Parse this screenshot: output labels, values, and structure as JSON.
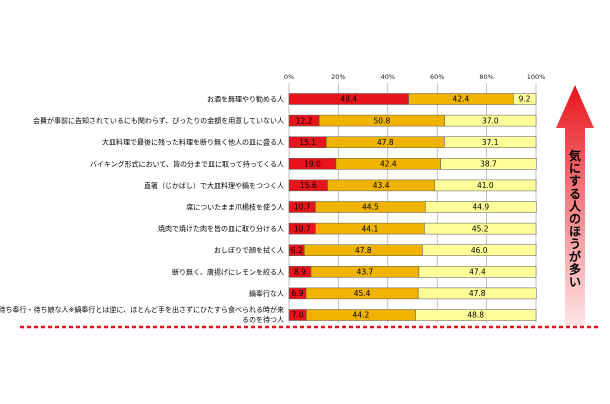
{
  "chart_data": {
    "type": "bar",
    "orientation": "horizontal",
    "stacked": true,
    "percent_stacked": true,
    "xlim": [
      0,
      100
    ],
    "x_ticks": [
      "0%",
      "20%",
      "40%",
      "60%",
      "80%",
      "100%"
    ],
    "grid": true,
    "legend": "none",
    "categories": [
      "お酒を無理やり勧める人",
      "会費が事前に告知されているにも関わらず、ぴったりの金額を用意していない人",
      "大皿料理で最後に残った料理を断り無く他人の皿に盛る人",
      "バイキング形式において、皆の分まで皿に取って持ってくる人",
      "直箸（じかばし）で大皿料理や鍋をつつく人",
      "席についたまま爪楊枝を使う人",
      "焼肉で焼けた肉を皆の皿に取り分ける人",
      "おしぼりで顔を拭く人",
      "断り無く、唐揚げにレモンを絞る人",
      "鍋奉行な人",
      "待ち奉行・待ち娘な人※鍋奉行とは逆に、ほとんど手を出さずにひたすら食べられる時が来るのを待つ人"
    ],
    "series": [
      {
        "values": [
          48.4,
          12.2,
          15.1,
          19.0,
          15.6,
          10.7,
          10.7,
          6.2,
          8.9,
          6.9,
          7.0
        ],
        "color": "#e8141c"
      },
      {
        "values": [
          42.4,
          50.8,
          47.8,
          42.4,
          43.4,
          44.5,
          44.1,
          47.8,
          43.7,
          45.4,
          44.2
        ],
        "color": "#f0b400"
      },
      {
        "values": [
          9.2,
          37.0,
          37.1,
          38.7,
          41.0,
          44.9,
          45.2,
          46.0,
          47.4,
          47.8,
          48.8
        ],
        "color": "#ffff99"
      }
    ],
    "segment_labels": [
      [
        "48.4",
        "42.4",
        "9.2"
      ],
      [
        "12.2",
        "50.8",
        "37.0"
      ],
      [
        "15.1",
        "47.8",
        "37.1"
      ],
      [
        "19.0",
        "42.4",
        "38.7"
      ],
      [
        "15.6",
        "43.4",
        "41.0"
      ],
      [
        "10.7",
        "44.5",
        "44.9"
      ],
      [
        "10.7",
        "44.1",
        "45.2"
      ],
      [
        "6.2",
        "47.8",
        "46.0"
      ],
      [
        "8.9",
        "43.7",
        "47.4"
      ],
      [
        "6.9",
        "45.4",
        "47.8"
      ],
      [
        "7.0",
        "44.2",
        "48.8"
      ]
    ]
  },
  "annotation": {
    "arrow_text": "気にする人のほうが多い",
    "arrow_color": "#e8141c",
    "divider_color": "#e8141c"
  }
}
